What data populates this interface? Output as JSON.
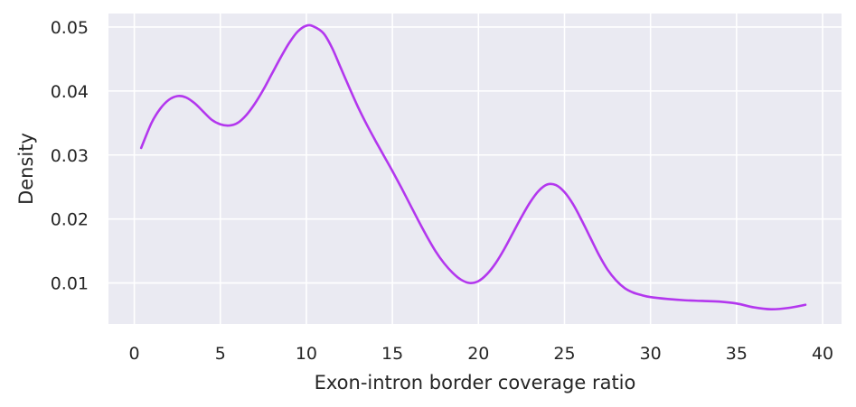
{
  "chart_data": {
    "type": "line",
    "title": "",
    "xlabel": "Exon-intron border coverage ratio",
    "ylabel": "Density",
    "xlim": [
      -1.5,
      41.1
    ],
    "ylim": [
      0.0036,
      0.0521
    ],
    "x_ticks": [
      0,
      5,
      10,
      15,
      20,
      25,
      30,
      35,
      40
    ],
    "y_ticks": [
      0.01,
      0.02,
      0.03,
      0.04,
      0.05
    ],
    "x_tick_labels": [
      "0",
      "5",
      "10",
      "15",
      "20",
      "25",
      "30",
      "35",
      "40"
    ],
    "y_tick_labels": [
      "0.01",
      "0.02",
      "0.03",
      "0.04",
      "0.05"
    ],
    "grid": true,
    "background_color": "#EAEAF2",
    "series": [
      {
        "color": "#B337EE",
        "x": [
          0.4,
          1.0,
          1.5,
          2.0,
          2.5,
          3.0,
          3.5,
          4.0,
          4.5,
          5.0,
          5.5,
          6.0,
          6.5,
          7.0,
          7.5,
          8.0,
          8.5,
          9.0,
          9.5,
          10.0,
          10.4,
          11.0,
          11.5,
          12.0,
          12.5,
          13.0,
          13.5,
          14.0,
          14.5,
          15.0,
          15.5,
          16.0,
          16.5,
          17.0,
          17.5,
          18.0,
          18.5,
          19.0,
          19.5,
          20.0,
          20.5,
          21.0,
          21.5,
          22.0,
          22.5,
          23.0,
          23.5,
          24.0,
          24.5,
          25.0,
          25.5,
          26.0,
          26.5,
          27.0,
          27.5,
          28.0,
          28.5,
          29.0,
          29.5,
          30.0,
          31.0,
          32.0,
          33.0,
          34.0,
          35.0,
          36.0,
          37.0,
          38.0,
          39.0
        ],
        "y": [
          0.0311,
          0.035,
          0.0372,
          0.0386,
          0.0392,
          0.039,
          0.0381,
          0.0368,
          0.0355,
          0.0348,
          0.0346,
          0.035,
          0.0362,
          0.038,
          0.0402,
          0.0427,
          0.0452,
          0.0475,
          0.0493,
          0.0502,
          0.0501,
          0.049,
          0.0467,
          0.0436,
          0.0405,
          0.0375,
          0.0348,
          0.0323,
          0.0299,
          0.0275,
          0.025,
          0.0224,
          0.0198,
          0.0173,
          0.015,
          0.0131,
          0.0116,
          0.0105,
          0.01,
          0.0103,
          0.0114,
          0.0131,
          0.0153,
          0.0178,
          0.0203,
          0.0226,
          0.0244,
          0.0254,
          0.0253,
          0.0242,
          0.0223,
          0.0198,
          0.0171,
          0.0144,
          0.0121,
          0.0104,
          0.0092,
          0.0085,
          0.0081,
          0.0078,
          0.0075,
          0.0073,
          0.0072,
          0.0071,
          0.0068,
          0.0062,
          0.0059,
          0.0061,
          0.0066
        ]
      }
    ]
  }
}
